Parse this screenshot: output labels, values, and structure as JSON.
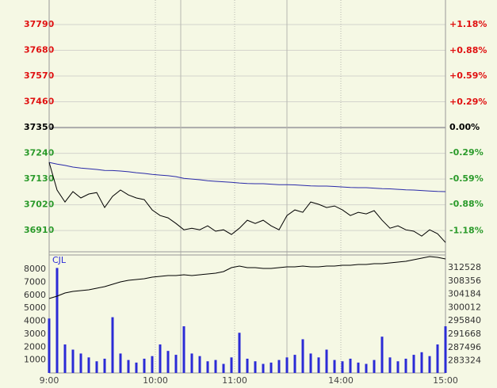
{
  "chart_data": [
    {
      "type": "line",
      "x": [
        0,
        5,
        10,
        15,
        20,
        25,
        30,
        35,
        40,
        45,
        50,
        55,
        60,
        65,
        70,
        75,
        80,
        85,
        90,
        95,
        100,
        105,
        110,
        115,
        120,
        125,
        130,
        135,
        140,
        145,
        150,
        155,
        160,
        165,
        170,
        175,
        180,
        185,
        190,
        195,
        200,
        205,
        210,
        215,
        220,
        225,
        230,
        235,
        240,
        245,
        250
      ],
      "xlim": [
        0,
        250
      ],
      "xticks": [
        {
          "value": 0,
          "label": "9:00"
        },
        {
          "value": 67,
          "label": "10:00"
        },
        {
          "value": 117,
          "label": "11:00"
        },
        {
          "value": 184,
          "label": "14:00"
        },
        {
          "value": 250,
          "label": "15:00"
        }
      ],
      "xgrid": [
        83,
        150
      ],
      "ylim": [
        36819,
        37895
      ],
      "yticks": [
        37790,
        37680,
        37570,
        37460,
        37350,
        37240,
        37130,
        37020,
        36910
      ],
      "y2lim": [
        -1.422,
        1.459
      ],
      "y2ticks": [
        {
          "value": 1.18,
          "label": "+1.18%"
        },
        {
          "value": 0.88,
          "label": "+0.88%"
        },
        {
          "value": 0.59,
          "label": "+0.59%"
        },
        {
          "value": 0.29,
          "label": "+0.29%"
        },
        {
          "value": 0,
          "label": "0.00%"
        },
        {
          "value": -0.29,
          "label": "-0.29%"
        },
        {
          "value": -0.59,
          "label": "-0.59%"
        },
        {
          "value": -0.88,
          "label": "-0.88%"
        },
        {
          "value": -1.18,
          "label": "-1.18%"
        }
      ],
      "series": [
        {
          "color": "#000000",
          "values": [
            37201,
            37083,
            37032,
            37076,
            37049,
            37066,
            37072,
            37008,
            37056,
            37083,
            37062,
            37049,
            37042,
            36998,
            36974,
            36964,
            36940,
            36913,
            36920,
            36913,
            36930,
            36907,
            36913,
            36893,
            36920,
            36954,
            36940,
            36954,
            36930,
            36913,
            36974,
            36998,
            36988,
            37032,
            37022,
            37008,
            37015,
            36998,
            36974,
            36988,
            36981,
            36995,
            36954,
            36920,
            36930,
            36913,
            36907,
            36886,
            36913,
            36896,
            36859
          ]
        },
        {
          "color": "#2a2aa8",
          "values": [
            37201,
            37194,
            37188,
            37181,
            37177,
            37174,
            37171,
            37167,
            37166,
            37164,
            37161,
            37157,
            37154,
            37150,
            37147,
            37144,
            37140,
            37133,
            37130,
            37127,
            37123,
            37120,
            37118,
            37116,
            37113,
            37111,
            37110,
            37110,
            37108,
            37106,
            37106,
            37105,
            37103,
            37101,
            37100,
            37100,
            37098,
            37096,
            37094,
            37093,
            37093,
            37091,
            37089,
            37088,
            37086,
            37084,
            37083,
            37081,
            37079,
            37077,
            37076
          ]
        }
      ]
    },
    {
      "type": "bar",
      "title": "CJL",
      "color": "#2b2bd6",
      "values": [
        4200,
        8100,
        2200,
        1800,
        1500,
        1200,
        900,
        1100,
        4300,
        1500,
        1000,
        800,
        1100,
        1300,
        2200,
        1700,
        1400,
        3600,
        1500,
        1300,
        900,
        1000,
        700,
        1200,
        3100,
        1100,
        900,
        700,
        800,
        1000,
        1200,
        1400,
        2600,
        1500,
        1200,
        1800,
        1000,
        900,
        1100,
        800,
        700,
        1000,
        2800,
        1200,
        900,
        1100,
        1400,
        1600,
        1300,
        2200,
        3600
      ],
      "ylim": [
        0,
        9100
      ],
      "yticks": [
        8000,
        7000,
        6000,
        5000,
        4000,
        3000,
        2000,
        1000
      ],
      "y2lim": [
        279504,
        316501
      ],
      "y2ticks": [
        312528,
        308356,
        304184,
        300012,
        295840,
        291668,
        287496,
        283324
      ],
      "series": [
        {
          "axis": "y2",
          "color": "#000000",
          "values": [
            302844,
            303589,
            304582,
            305079,
            305327,
            305576,
            306072,
            306569,
            307314,
            308058,
            308555,
            308804,
            309052,
            309548,
            309797,
            310045,
            310045,
            310293,
            310045,
            310293,
            310542,
            310790,
            311287,
            312528,
            313025,
            312528,
            312528,
            312280,
            312280,
            312528,
            312776,
            312776,
            313025,
            312776,
            312776,
            313025,
            313025,
            313273,
            313273,
            313521,
            313521,
            313770,
            313770,
            314018,
            314266,
            314514,
            315011,
            315508,
            316004,
            315756,
            315259
          ]
        }
      ]
    }
  ]
}
